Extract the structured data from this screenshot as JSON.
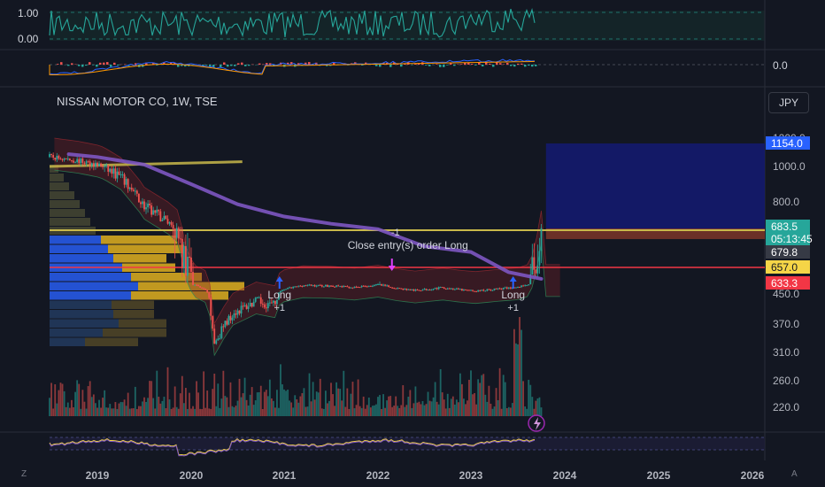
{
  "title": "NISSAN MOTOR CO, 1W, TSE",
  "currency": "JPY",
  "corner_left": "Z",
  "corner_right": "A",
  "colors": {
    "background": "#131722",
    "up": "#26a69a",
    "down": "#ef5350",
    "ma": "#7e57c2",
    "yellow": "#c8b84a",
    "vp_blue": "#2962ff",
    "vp_yellow": "#e0b020",
    "target_zone": "#141a6e"
  },
  "chart_data": {
    "type": "candlestick",
    "symbol": "NISSAN MOTOR CO",
    "interval": "1W",
    "exchange": "TSE",
    "x_tick_labels": [
      "2019",
      "2020",
      "2021",
      "2022",
      "2023",
      "2024",
      "2025",
      "2026"
    ],
    "y_tick_labels": [
      "1200.0",
      "1000.0",
      "800.0",
      "450.0",
      "370.0",
      "310.0",
      "260.0",
      "220.0"
    ],
    "price_tags": [
      {
        "label": "1154.0",
        "value": 1154.0,
        "color": "#2962ff"
      },
      {
        "label": "683.5",
        "value": 683.5,
        "color": "#26a69a"
      },
      {
        "label": "05:13:45",
        "value": 683.5,
        "color": "#26a69a"
      },
      {
        "label": "679.8",
        "value": 679.8,
        "color": "#363a45"
      },
      {
        "label": "657.0",
        "value": 657.0,
        "color": "#f5d547"
      },
      {
        "label": "633.3",
        "value": 633.3,
        "color": "#f23645"
      }
    ],
    "price_anchors": [
      {
        "price": 1300,
        "y": 156
      },
      {
        "price": 1000,
        "y": 188
      },
      {
        "price": 800,
        "y": 228
      },
      {
        "price": 683.5,
        "y": 260
      },
      {
        "price": 657,
        "y": 302
      },
      {
        "price": 633.3,
        "y": 320
      },
      {
        "price": 450,
        "y": 332
      },
      {
        "price": 370,
        "y": 366
      },
      {
        "price": 310,
        "y": 398
      },
      {
        "price": 260,
        "y": 430
      },
      {
        "price": 220,
        "y": 460
      }
    ],
    "time_anchors": [
      {
        "t": 2018.5,
        "x": 56
      },
      {
        "t": 2019.0,
        "x": 110
      },
      {
        "t": 2020.0,
        "x": 216
      },
      {
        "t": 2021.0,
        "x": 321
      },
      {
        "t": 2022.0,
        "x": 427
      },
      {
        "t": 2023.0,
        "x": 532
      },
      {
        "t": 2024.0,
        "x": 638
      },
      {
        "t": 2025.0,
        "x": 744
      },
      {
        "t": 2026.0,
        "x": 850
      }
    ],
    "price_keypoints": [
      [
        2018.5,
        1100
      ],
      [
        2018.8,
        1060
      ],
      [
        2019.0,
        1020
      ],
      [
        2019.25,
        940
      ],
      [
        2019.5,
        780
      ],
      [
        2019.75,
        720
      ],
      [
        2020.0,
        640
      ],
      [
        2020.15,
        520
      ],
      [
        2020.25,
        330
      ],
      [
        2020.45,
        400
      ],
      [
        2020.7,
        430
      ],
      [
        2020.9,
        420
      ],
      [
        2021.0,
        530
      ],
      [
        2021.2,
        600
      ],
      [
        2021.5,
        590
      ],
      [
        2021.75,
        560
      ],
      [
        2022.0,
        610
      ],
      [
        2022.2,
        550
      ],
      [
        2022.4,
        510
      ],
      [
        2022.7,
        560
      ],
      [
        2022.9,
        520
      ],
      [
        2023.05,
        500
      ],
      [
        2023.3,
        540
      ],
      [
        2023.5,
        565
      ],
      [
        2023.65,
        645
      ],
      [
        2023.75,
        683.5
      ]
    ],
    "moving_average": [
      [
        2018.7,
        1130
      ],
      [
        2019.0,
        1100
      ],
      [
        2019.5,
        1020
      ],
      [
        2020.0,
        900
      ],
      [
        2020.5,
        790
      ],
      [
        2021.0,
        740
      ],
      [
        2021.5,
        710
      ],
      [
        2022.0,
        688
      ],
      [
        2022.5,
        672
      ],
      [
        2023.0,
        668
      ],
      [
        2023.4,
        650
      ],
      [
        2023.75,
        640
      ]
    ],
    "trendline": [
      [
        2018.5,
        1000
      ],
      [
        2020.55,
        1050
      ]
    ],
    "horizontal_levels": [
      {
        "price": 683.5,
        "color": "#c8b84a",
        "from": 2018.5,
        "to": 2026.2
      },
      {
        "price": 657.0,
        "color": "#f23645",
        "from": 2018.5,
        "to": 2026.2
      }
    ],
    "target_zone": {
      "from": 2023.8,
      "to": 2026.2,
      "low": 683.5,
      "high": 1154.0
    },
    "signals": [
      {
        "label": "Long",
        "qty": "+1",
        "time": 2020.95,
        "type": "entry"
      },
      {
        "label": "Long",
        "qty": "+1",
        "time": 2023.45,
        "type": "entry"
      },
      {
        "label": "Close entry(s) order Long",
        "qty": "-1",
        "time": 2022.15,
        "type": "exit"
      }
    ],
    "oscillator_1": {
      "levels": [
        "1.00",
        "0.00"
      ]
    },
    "oscillator_2": {
      "levels": [
        "0.0"
      ]
    },
    "volume_profile_rows": [
      {
        "blue": 58,
        "yellow": 86
      },
      {
        "blue": 66,
        "yellow": 86
      },
      {
        "blue": 72,
        "yellow": 60
      },
      {
        "blue": 82,
        "yellow": 60
      },
      {
        "blue": 92,
        "yellow": 80
      },
      {
        "blue": 100,
        "yellow": 120
      },
      {
        "blue": 92,
        "yellow": 110
      },
      {
        "blue": 70,
        "yellow": 48
      },
      {
        "blue": 72,
        "yellow": 46
      },
      {
        "blue": 78,
        "yellow": 54
      },
      {
        "blue": 60,
        "yellow": 72
      },
      {
        "blue": 40,
        "yellow": 60
      }
    ]
  }
}
